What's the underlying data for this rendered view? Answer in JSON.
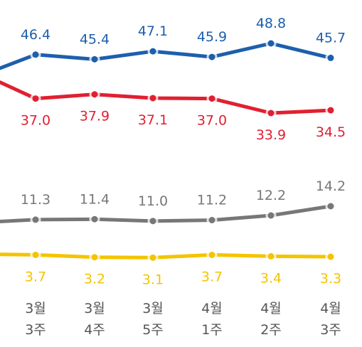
{
  "chart_data": {
    "type": "line",
    "categories": [
      [
        "3월",
        "3주"
      ],
      [
        "3월",
        "4주"
      ],
      [
        "3월",
        "5주"
      ],
      [
        "4월",
        "1주"
      ],
      [
        "4월",
        "2주"
      ],
      [
        "4월",
        "3주"
      ]
    ],
    "series": [
      {
        "color": "#1d5fad",
        "values": [
          46.4,
          45.4,
          47.1,
          45.9,
          48.8,
          45.7
        ],
        "label_position": "above",
        "partial_prev": 43.5
      },
      {
        "color": "#e02031",
        "values": [
          37.0,
          37.9,
          37.1,
          37.0,
          33.9,
          34.5
        ],
        "label_position": "below",
        "partial_prev": 40.5
      },
      {
        "color": "#777777",
        "values": [
          11.3,
          11.4,
          11.0,
          11.2,
          12.2,
          14.2
        ],
        "label_position": "above",
        "partial_prev": 10.9
      },
      {
        "color": "#f4c400",
        "values": [
          3.7,
          3.2,
          3.1,
          3.7,
          3.4,
          3.3
        ],
        "label_position": "below",
        "partial_prev": 3.8
      }
    ]
  }
}
